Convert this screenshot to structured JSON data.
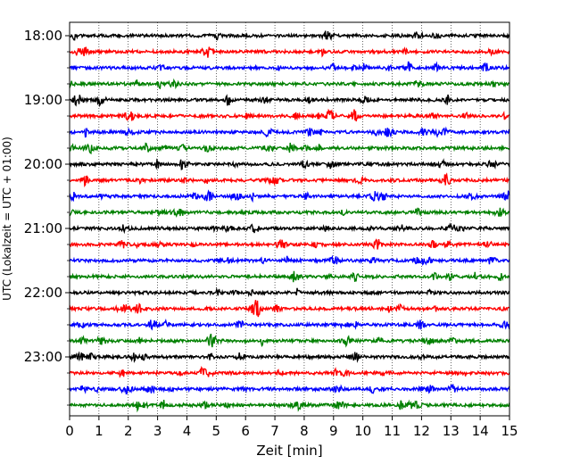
{
  "chart_data": {
    "type": "line",
    "title": "",
    "xlabel": "Zeit  [min]",
    "ylabel": "UTC (Lokalzeit = UTC + 01:00)",
    "xlim": [
      0,
      15
    ],
    "x_ticks": [
      "0",
      "1",
      "2",
      "3",
      "4",
      "5",
      "6",
      "7",
      "8",
      "9",
      "10",
      "11",
      "12",
      "13",
      "14",
      "15"
    ],
    "y_time_ticks": [
      "18:00",
      "19:00",
      "20:00",
      "21:00",
      "22:00",
      "23:00"
    ],
    "grid": "vertical dotted lines at each minute",
    "row_interval_minutes": 15,
    "start_time": "18:00",
    "colors": [
      "#000000",
      "#ff0000",
      "#0000ff",
      "#008000"
    ],
    "series": [
      {
        "start": "18:00",
        "color": "#000000"
      },
      {
        "start": "18:15",
        "color": "#ff0000"
      },
      {
        "start": "18:30",
        "color": "#0000ff"
      },
      {
        "start": "18:45",
        "color": "#008000"
      },
      {
        "start": "19:00",
        "color": "#000000"
      },
      {
        "start": "19:15",
        "color": "#ff0000"
      },
      {
        "start": "19:30",
        "color": "#0000ff"
      },
      {
        "start": "19:45",
        "color": "#008000"
      },
      {
        "start": "20:00",
        "color": "#000000"
      },
      {
        "start": "20:15",
        "color": "#ff0000"
      },
      {
        "start": "20:30",
        "color": "#0000ff"
      },
      {
        "start": "20:45",
        "color": "#008000"
      },
      {
        "start": "21:00",
        "color": "#000000"
      },
      {
        "start": "21:15",
        "color": "#ff0000"
      },
      {
        "start": "21:30",
        "color": "#0000ff"
      },
      {
        "start": "21:45",
        "color": "#008000"
      },
      {
        "start": "22:00",
        "color": "#000000"
      },
      {
        "start": "22:15",
        "color": "#ff0000"
      },
      {
        "start": "22:30",
        "color": "#0000ff"
      },
      {
        "start": "22:45",
        "color": "#008000"
      },
      {
        "start": "23:00",
        "color": "#000000"
      },
      {
        "start": "23:15",
        "color": "#ff0000"
      },
      {
        "start": "23:30",
        "color": "#0000ff"
      },
      {
        "start": "23:45",
        "color": "#008000"
      }
    ]
  }
}
